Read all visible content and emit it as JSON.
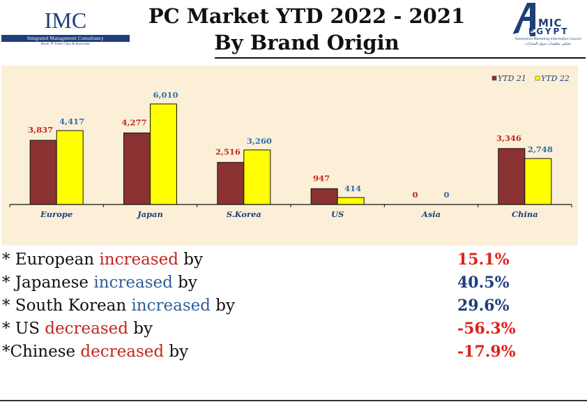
{
  "header": {
    "title_line1": "PC Market YTD 2022 - 2021",
    "title_line2": "By Brand Origin"
  },
  "logo_left": {
    "name": "IMC",
    "bar_text": "Integrated Management Consultancy",
    "tagline": "Room 'N' Fama Chay & Associates",
    "color": "#1f3f7a"
  },
  "logo_right": {
    "name": "MIC",
    "sub": "EGYPT",
    "caption": "Automotive Marketing Information Council",
    "caption_ar": "مجلس معلومات سوق السيارات",
    "color": "#1f3f7a"
  },
  "chart_data": {
    "type": "bar",
    "title": "",
    "xlabel": "",
    "ylabel": "",
    "categories": [
      "Europe",
      "Japan",
      "S.Korea",
      "US",
      "Asia",
      "China"
    ],
    "series": [
      {
        "name": "YTD 21",
        "values": [
          3837,
          4277,
          2516,
          947,
          0,
          3346
        ],
        "labels": [
          "3,837",
          "4,277",
          "2,516",
          "947",
          "0",
          "3,346"
        ],
        "color": "#8b3232",
        "label_color": "#c0261f"
      },
      {
        "name": "YTD 22",
        "values": [
          4417,
          6010,
          3260,
          414,
          0,
          2748
        ],
        "labels": [
          "4,417",
          "6,010",
          "3,260",
          "414",
          "0",
          "2,748"
        ],
        "color": "#ffff00",
        "label_color": "#2f6fa8"
      }
    ],
    "ylim": [
      0,
      6800
    ],
    "grid": false,
    "legend": "top-right",
    "background": "#fbefd7",
    "category_label_color": "#1f3f7a"
  },
  "stats": [
    {
      "prefix": "* European ",
      "keyword": "increased",
      "suffix": " by",
      "keyword_color": "#c0261f",
      "value": "15.1%",
      "value_color": "#e0201c"
    },
    {
      "prefix": "* Japanese ",
      "keyword": "increased",
      "suffix": " by",
      "keyword_color": "#2f5f9a",
      "value": "40.5%",
      "value_color": "#1f3f7a"
    },
    {
      "prefix": "* South Korean ",
      "keyword": "increased",
      "suffix": " by",
      "keyword_color": "#2f5f9a",
      "value": "29.6%",
      "value_color": "#1f3f7a"
    },
    {
      "prefix": "* US ",
      "keyword": "decreased",
      "suffix": " by",
      "keyword_color": "#c0261f",
      "value": "-56.3%",
      "value_color": "#e0201c"
    },
    {
      "prefix": "*Chinese ",
      "keyword": "decreased",
      "suffix": " by",
      "keyword_color": "#c0261f",
      "value": "-17.9%",
      "value_color": "#e0201c"
    }
  ]
}
